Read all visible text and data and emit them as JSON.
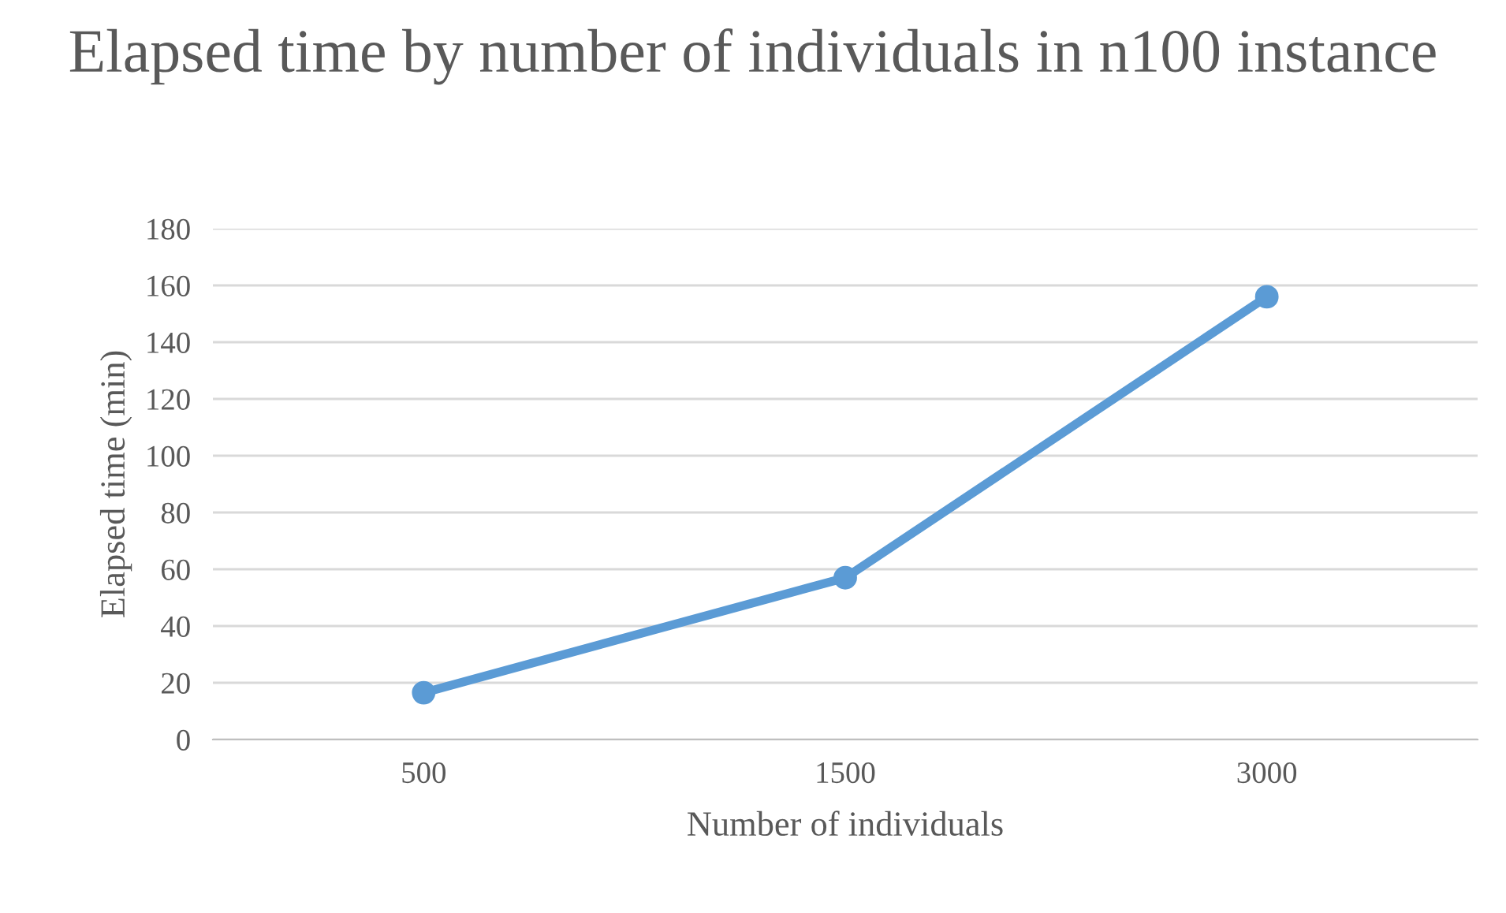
{
  "chart_data": {
    "type": "line",
    "title": "Elapsed time by number of individuals in n100 instance",
    "xlabel": "Number of individuals",
    "ylabel": "Elapsed time (min)",
    "categories": [
      "500",
      "1500",
      "3000"
    ],
    "series": [
      {
        "color": "#5b9bd5",
        "values": [
          16.5,
          57,
          156
        ]
      }
    ],
    "ylim": [
      0,
      180
    ],
    "yticks": [
      0,
      20,
      40,
      60,
      80,
      100,
      120,
      140,
      160,
      180
    ],
    "grid": "y",
    "marker": "circle",
    "line_style": "solid"
  }
}
